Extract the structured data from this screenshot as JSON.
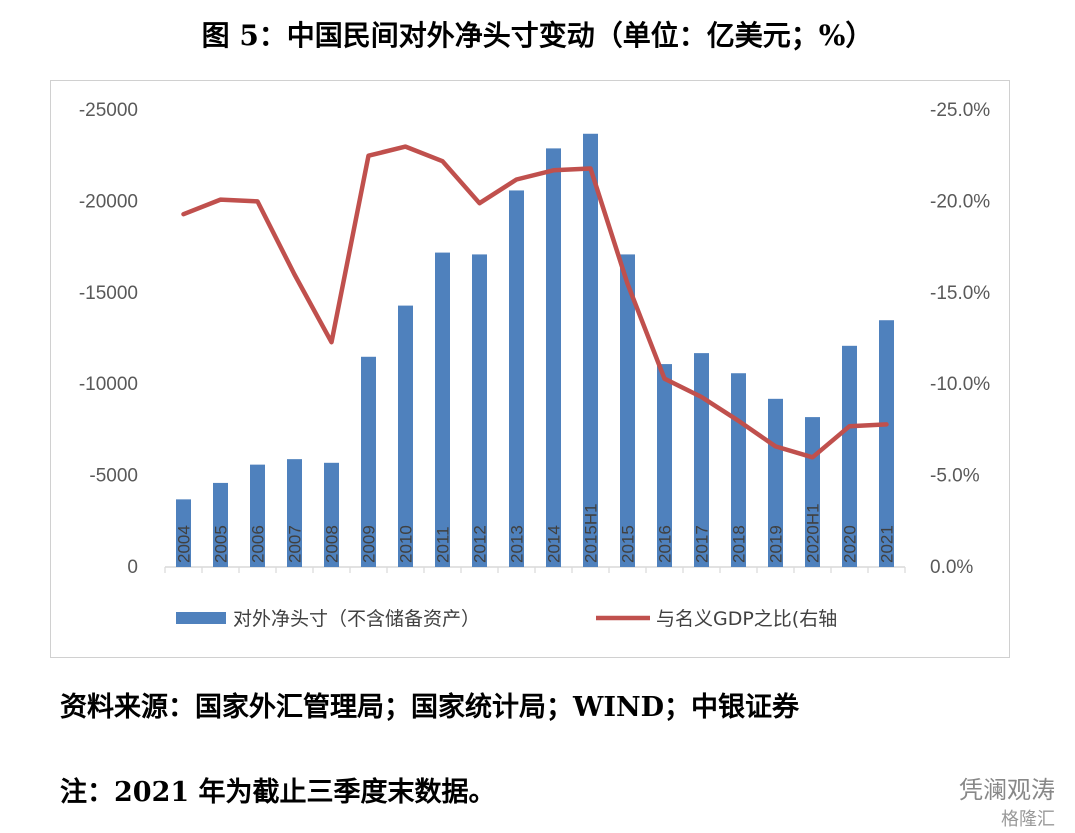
{
  "title": "图 5：中国民间对外净头寸变动（单位：亿美元；%）",
  "source": "资料来源：国家外汇管理局；国家统计局；WIND；中银证券",
  "note": "注：2021 年为截止三季度末数据。",
  "watermark": "凭澜观涛",
  "watermark2": "格隆汇",
  "colors": {
    "bar": "#4f81bd",
    "line": "#c0504d",
    "axis": "#d9d9d9"
  },
  "chart_data": {
    "type": "bar",
    "categories": [
      "2004",
      "2005",
      "2006",
      "2007",
      "2008",
      "2009",
      "2010",
      "2011",
      "2012",
      "2013",
      "2014",
      "2015H1",
      "2015",
      "2016",
      "2017",
      "2018",
      "2019",
      "2020H1",
      "2020",
      "2021"
    ],
    "series": [
      {
        "name": "对外净头寸（不含储备资产）",
        "type": "bar",
        "axis": "left",
        "values": [
          -3700,
          -4600,
          -5600,
          -5900,
          -5700,
          -11500,
          -14300,
          -17200,
          -17100,
          -20600,
          -22900,
          -23700,
          -17100,
          -11100,
          -11700,
          -10600,
          -9200,
          -8200,
          -12100,
          -13500
        ]
      },
      {
        "name": "与名义GDP之比(右轴",
        "type": "line",
        "axis": "right",
        "values": [
          -19.3,
          -20.1,
          -20.0,
          -16.0,
          -12.3,
          -22.5,
          -23.0,
          -22.2,
          -19.9,
          -21.2,
          -21.7,
          -21.8,
          -15.5,
          -10.3,
          -9.3,
          -8.0,
          -6.6,
          -6.0,
          -7.7,
          -7.8
        ]
      }
    ],
    "y_left": {
      "ticks": [
        -25000,
        -20000,
        -15000,
        -10000,
        -5000,
        0
      ],
      "ylim": [
        0,
        -25000
      ]
    },
    "y_right": {
      "ticks": [
        "-25.0%",
        "-20.0%",
        "-15.0%",
        "-10.0%",
        "-5.0%",
        "0.0%"
      ],
      "values": [
        -25,
        -20,
        -15,
        -10,
        -5,
        0
      ],
      "ylim": [
        0,
        -25
      ]
    },
    "grid": false,
    "legend_position": "bottom"
  }
}
